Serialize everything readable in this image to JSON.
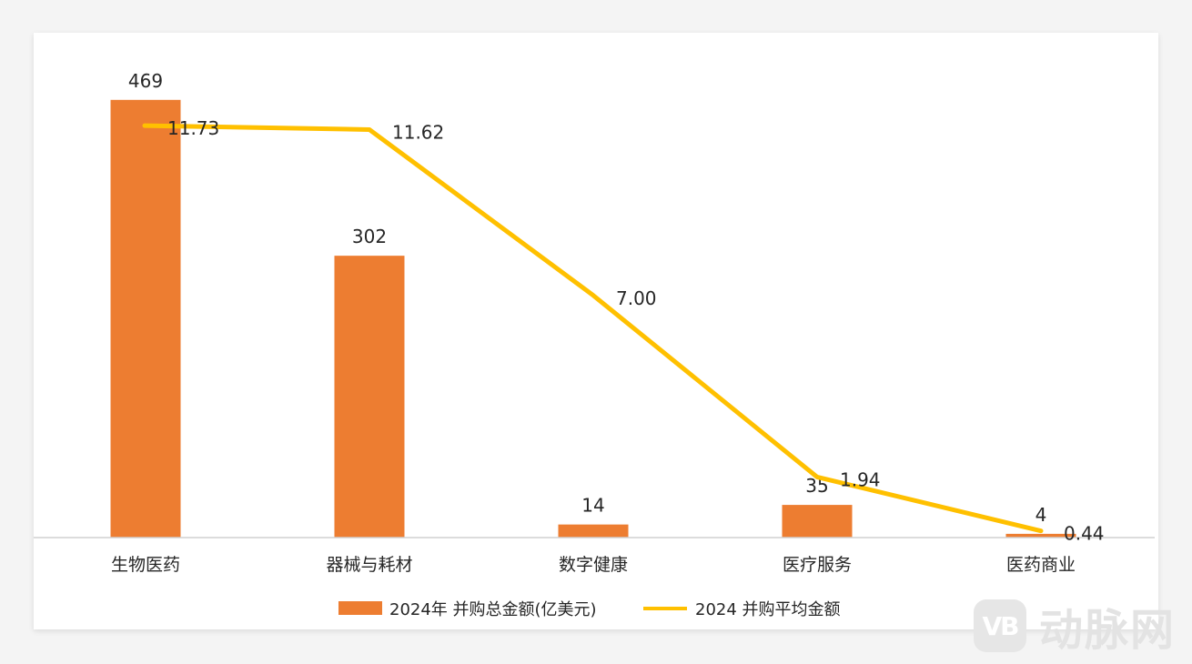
{
  "chart_data": {
    "type": "bar",
    "categories": [
      "生物医药",
      "器械与耗材",
      "数字健康",
      "医疗服务",
      "医药商业"
    ],
    "series": [
      {
        "name": "2024年 并购总金额(亿美元)",
        "type": "bar",
        "color": "#ED7D31",
        "values": [
          469,
          302,
          14,
          35,
          4
        ],
        "labels": [
          "469",
          "302",
          "14",
          "35",
          "4"
        ]
      },
      {
        "name": "2024 并购平均金额",
        "type": "line",
        "color": "#FFC000",
        "values": [
          11.73,
          11.62,
          7.0,
          1.94,
          0.44
        ],
        "labels": [
          "11.73",
          "11.62",
          "7.00",
          "1.94",
          "0.44"
        ]
      }
    ],
    "bar_axis_range": [
      0,
      500
    ],
    "line_axis_range": [
      0,
      13
    ],
    "legend": "bottom",
    "grid": false
  },
  "watermark": {
    "logo_text": "VB",
    "text": "动脉网"
  }
}
